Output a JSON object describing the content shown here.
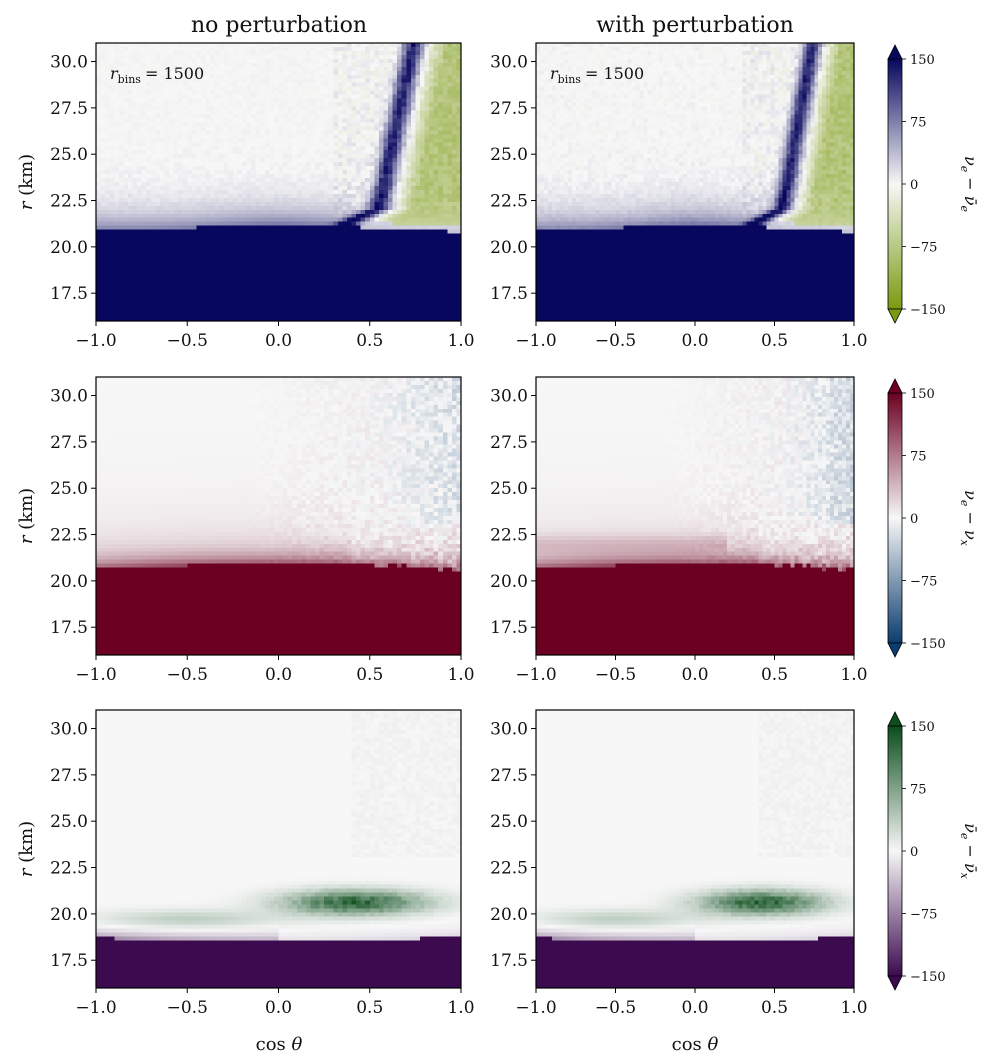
{
  "column_titles": [
    "no perturbation",
    "with perturbation"
  ],
  "annotation": "r_bins = 1500",
  "annotation_main": "r",
  "annotation_sub": "bins",
  "annotation_value": "= 1500",
  "xlabel": "cos θ",
  "ylabel": "r (km)",
  "colors": {
    "row1": {
      "low": "#7a9a10",
      "mid": "#f7f7f7",
      "high": "#08075e"
    },
    "row2": {
      "low": "#0b3c6e",
      "mid": "#f7f7f7",
      "high": "#6b0020"
    },
    "row3": {
      "low": "#3c0a4f",
      "mid": "#f7f7f7",
      "high": "#0b4d1c"
    }
  },
  "chart_data": [
    {
      "type": "heatmap",
      "row": 1,
      "colorbar_label": "ν_e − ν̄_e",
      "colorbar_label_parts": [
        "ν",
        "e",
        " − ",
        "ν̄",
        "e"
      ],
      "colorbar_ticks": [
        "150",
        "75",
        "0",
        "−75",
        "−150"
      ],
      "clim": [
        -150,
        150
      ],
      "xlim": [
        -1.0,
        1.0
      ],
      "ylim": [
        16.0,
        31.0
      ],
      "xticks": [
        "−1.0",
        "−0.5",
        "0.0",
        "0.5",
        "1.0"
      ],
      "yticks": [
        "17.5",
        "20.0",
        "22.5",
        "25.0",
        "27.5",
        "30.0"
      ],
      "panels": [
        {
          "column": "no perturbation",
          "saturated_below_r_km": 20.9,
          "band_center_cos": 0.55,
          "positive_band": true,
          "negative_region_cos_min": 0.75
        },
        {
          "column": "with perturbation",
          "saturated_below_r_km": 20.9,
          "band_center_cos": 0.55,
          "positive_band": true,
          "negative_region_cos_min": 0.75
        }
      ]
    },
    {
      "type": "heatmap",
      "row": 2,
      "colorbar_label": "ν_e − ν_x",
      "colorbar_label_parts": [
        "ν",
        "e",
        " − ",
        "ν",
        "x"
      ],
      "colorbar_ticks": [
        "150",
        "75",
        "0",
        "−75",
        "−150"
      ],
      "clim": [
        -150,
        150
      ],
      "xlim": [
        -1.0,
        1.0
      ],
      "ylim": [
        16.0,
        31.0
      ],
      "xticks": [
        "−1.0",
        "−0.5",
        "0.0",
        "0.5",
        "1.0"
      ],
      "yticks": [
        "17.5",
        "20.0",
        "22.5",
        "25.0",
        "27.5",
        "30.0"
      ],
      "panels": [
        {
          "column": "no perturbation",
          "saturated_below_r_km": 20.8
        },
        {
          "column": "with perturbation",
          "saturated_below_r_km": 20.8
        }
      ]
    },
    {
      "type": "heatmap",
      "row": 3,
      "colorbar_label": "ν̄_e − ν̄_x",
      "colorbar_label_parts": [
        "ν̄",
        "e",
        " − ",
        "ν̄",
        "x"
      ],
      "colorbar_ticks": [
        "150",
        "75",
        "0",
        "−75",
        "−150"
      ],
      "clim": [
        -150,
        150
      ],
      "xlim": [
        -1.0,
        1.0
      ],
      "ylim": [
        16.0,
        31.0
      ],
      "xticks": [
        "−1.0",
        "−0.5",
        "0.0",
        "0.5",
        "1.0"
      ],
      "yticks": [
        "17.5",
        "20.0",
        "22.5",
        "25.0",
        "27.5",
        "30.0"
      ],
      "panels": [
        {
          "column": "no perturbation",
          "saturated_below_r_km": 18.7,
          "green_peak_cos": 0.4,
          "green_peak_r_km": 20.6
        },
        {
          "column": "with perturbation",
          "saturated_below_r_km": 18.7,
          "green_peak_cos": 0.4,
          "green_peak_r_km": 20.6
        }
      ]
    }
  ]
}
